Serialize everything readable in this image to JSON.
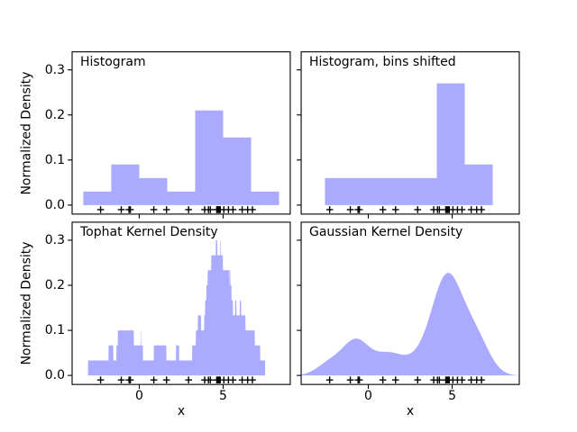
{
  "figure": {
    "background": "#ffffff",
    "accent_fill": "#aaaaff",
    "axis_color": "#000000",
    "text_color": "#000000",
    "ylabel": "Normalized Density",
    "xlabel": "x"
  },
  "axes": {
    "xlim": [
      -4,
      9
    ],
    "ylim": [
      -0.02,
      0.34
    ],
    "xticks": [
      0,
      5
    ],
    "xtick_labels": [
      "0",
      "5"
    ],
    "yticks": [
      0.0,
      0.1,
      0.2,
      0.3
    ],
    "ytick_labels": [
      "0.0",
      "0.1",
      "0.2",
      "0.3"
    ],
    "title_position_data_coords": [
      -3.5,
      0.31
    ],
    "grid": false,
    "legend": "none"
  },
  "data_points": [
    1.6243,
    -0.6118,
    -0.5282,
    -1.073,
    0.8654,
    -2.3015,
    6.7448,
    4.2388,
    5.319,
    4.7506,
    6.4621,
    2.9399,
    4.6776,
    4.6159,
    6.1338,
    3.9001,
    4.8276,
    4.1221,
    5.0422,
    5.5828
  ],
  "rug_marker": {
    "symbol": "+",
    "color": "#000000",
    "y": -0.01
  },
  "chart_data": [
    {
      "id": "histogram",
      "type": "bar",
      "subtype": "histogram",
      "title": "Histogram",
      "row": 0,
      "col": 0,
      "bin_edges": [
        -5,
        -3.3333,
        -1.6667,
        0,
        1.6667,
        3.3333,
        5,
        6.6667,
        8.3333,
        10
      ],
      "values": [
        0,
        0.03,
        0.09,
        0.06,
        0.03,
        0.21,
        0.15,
        0.03,
        0
      ]
    },
    {
      "id": "histogram-shifted",
      "type": "bar",
      "subtype": "histogram",
      "title": "Histogram, bins shifted",
      "row": 0,
      "col": 1,
      "bin_edges": [
        -4.25,
        -2.5833,
        -0.9167,
        0.75,
        2.4167,
        4.0833,
        5.75,
        7.4167,
        9.0833,
        10.75
      ],
      "values": [
        0,
        0.06,
        0.06,
        0.06,
        0.06,
        0.27,
        0.09,
        0,
        0
      ]
    },
    {
      "id": "tophat-kde",
      "type": "area",
      "subtype": "kernel-density",
      "kernel": "tophat",
      "bandwidth": 0.75,
      "title": "Tophat Kernel Density",
      "row": 1,
      "col": 0,
      "peak_value": 0.3,
      "derived_from": "data_points"
    },
    {
      "id": "gaussian-kde",
      "type": "area",
      "subtype": "kernel-density",
      "kernel": "gaussian",
      "bandwidth": 0.75,
      "title": "Gaussian Kernel Density",
      "row": 1,
      "col": 1,
      "peak_value": 0.227,
      "derived_from": "data_points"
    }
  ]
}
